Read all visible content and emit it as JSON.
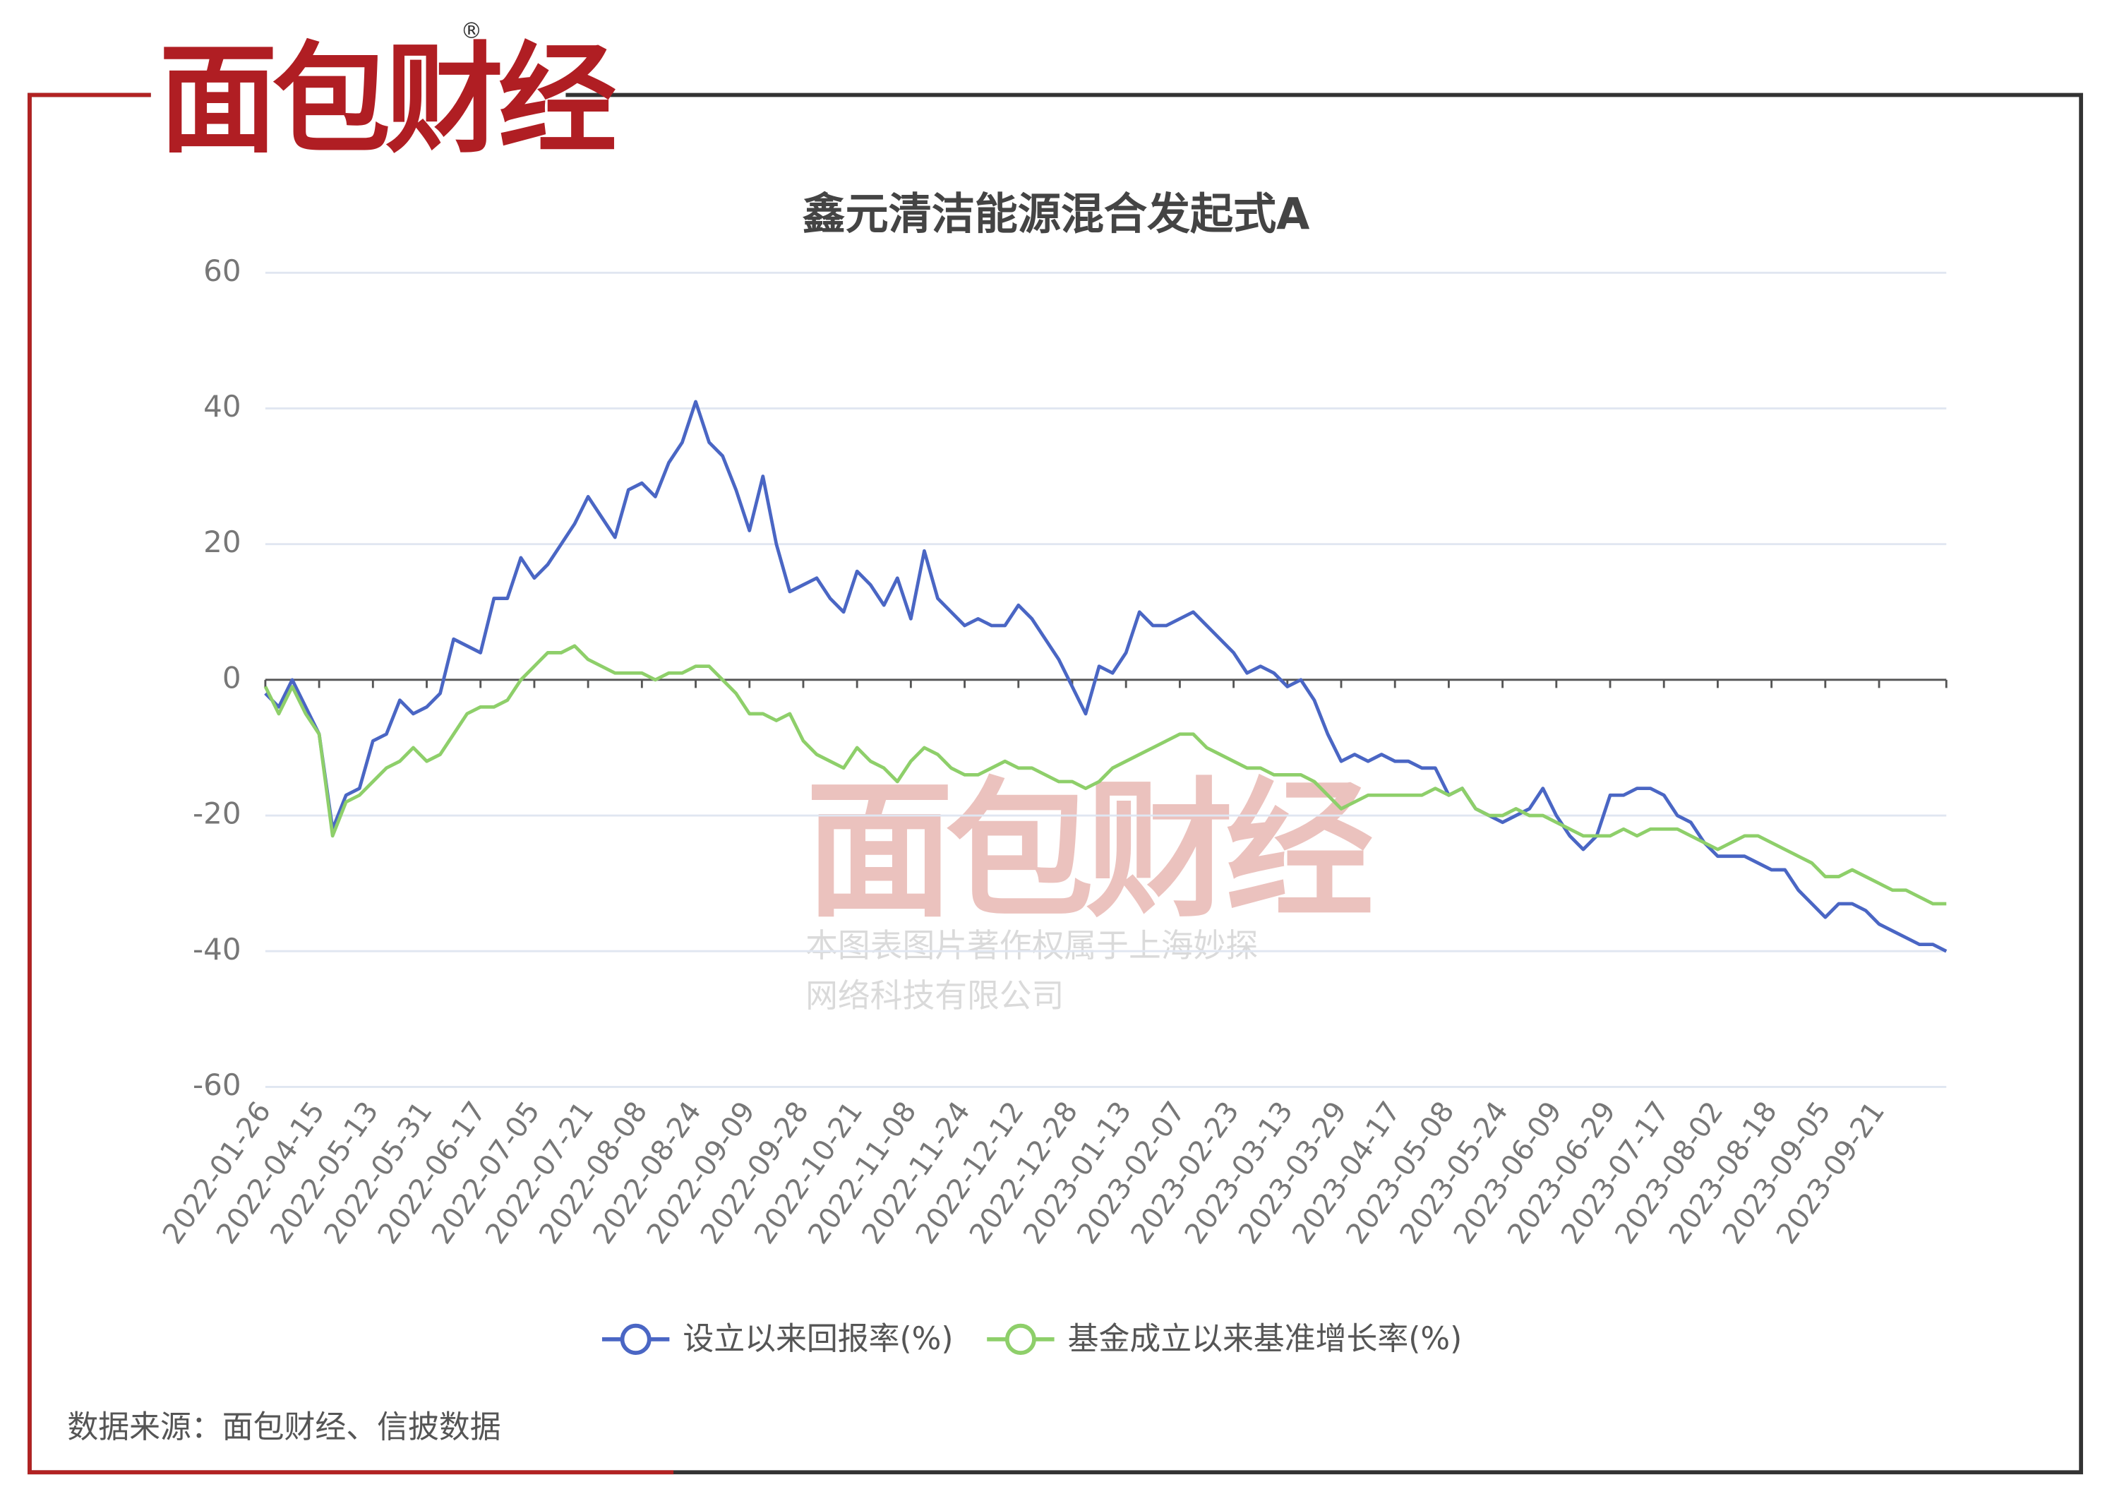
{
  "logo": "面包财经",
  "source": "数据来源：面包财经、信披数据",
  "watermark": [
    "本图表图片著作权属于上海妙探",
    "网络科技有限公司"
  ],
  "chart_data": {
    "type": "line",
    "title": "鑫元清洁能源混合发起式A",
    "categories": [
      "2022-01-26",
      null,
      null,
      null,
      "2022-04-15",
      null,
      null,
      null,
      "2022-05-13",
      null,
      null,
      null,
      "2022-05-31",
      null,
      null,
      null,
      "2022-06-17",
      null,
      null,
      null,
      "2022-07-05",
      null,
      null,
      null,
      "2022-07-21",
      null,
      null,
      null,
      "2022-08-08",
      null,
      null,
      null,
      "2022-08-24",
      null,
      null,
      null,
      "2022-09-09",
      null,
      null,
      null,
      "2022-09-28",
      null,
      null,
      null,
      "2022-10-21",
      null,
      null,
      null,
      "2022-11-08",
      null,
      null,
      null,
      "2022-11-24",
      null,
      null,
      null,
      "2022-12-12",
      null,
      null,
      null,
      "2022-12-28",
      null,
      null,
      null,
      "2023-01-13",
      null,
      null,
      null,
      "2023-02-07",
      null,
      null,
      null,
      "2023-02-23",
      null,
      null,
      null,
      "2023-03-13",
      null,
      null,
      null,
      "2023-03-29",
      null,
      null,
      null,
      "2023-04-17",
      null,
      null,
      null,
      "2023-05-08",
      null,
      null,
      null,
      "2023-05-24",
      null,
      null,
      null,
      "2023-06-09",
      null,
      null,
      null,
      "2023-06-29",
      null,
      null,
      null,
      "2023-07-17",
      null,
      null,
      null,
      "2023-08-02",
      null,
      null,
      null,
      "2023-08-18",
      null,
      null,
      null,
      "2023-09-05",
      null,
      null,
      null,
      "2023-09-21",
      null,
      null,
      null,
      null,
      null
    ],
    "series": [
      {
        "name": "设立以来回报率(%)",
        "color": "#4a66c4",
        "values": [
          -2,
          -4,
          0,
          -4,
          -8,
          -22,
          -17,
          -16,
          -9,
          -8,
          -3,
          -5,
          -4,
          -2,
          6,
          5,
          4,
          12,
          12,
          18,
          15,
          17,
          20,
          23,
          27,
          24,
          21,
          28,
          29,
          27,
          32,
          35,
          41,
          35,
          33,
          28,
          22,
          30,
          20,
          13,
          14,
          15,
          12,
          10,
          16,
          14,
          11,
          15,
          9,
          19,
          12,
          10,
          8,
          9,
          8,
          8,
          11,
          9,
          6,
          3,
          -1,
          -5,
          2,
          1,
          4,
          10,
          8,
          8,
          9,
          10,
          8,
          6,
          4,
          1,
          2,
          1,
          -1,
          0,
          -3,
          -8,
          -12,
          -11,
          -12,
          -11,
          -12,
          -12,
          -13,
          -13,
          -17,
          -16,
          -19,
          -20,
          -21,
          -20,
          -19,
          -16,
          -20,
          -23,
          -25,
          -23,
          -17,
          -17,
          -16,
          -16,
          -17,
          -20,
          -21,
          -24,
          -26,
          -26,
          -26,
          -27,
          -28,
          -28,
          -31,
          -33,
          -35,
          -33,
          -33,
          -34,
          -36,
          -37,
          -38,
          -39,
          -39,
          -40
        ]
      },
      {
        "name": "基金成立以来基准增长率(%)",
        "color": "#8ecf6a",
        "values": [
          -1,
          -5,
          -1,
          -5,
          -8,
          -23,
          -18,
          -17,
          -15,
          -13,
          -12,
          -10,
          -12,
          -11,
          -8,
          -5,
          -4,
          -4,
          -3,
          0,
          2,
          4,
          4,
          5,
          3,
          2,
          1,
          1,
          1,
          0,
          1,
          1,
          2,
          2,
          0,
          -2,
          -5,
          -5,
          -6,
          -5,
          -9,
          -11,
          -12,
          -13,
          -10,
          -12,
          -13,
          -15,
          -12,
          -10,
          -11,
          -13,
          -14,
          -14,
          -13,
          -12,
          -13,
          -13,
          -14,
          -15,
          -15,
          -16,
          -15,
          -13,
          -12,
          -11,
          -10,
          -9,
          -8,
          -8,
          -10,
          -11,
          -12,
          -13,
          -13,
          -14,
          -14,
          -14,
          -15,
          -17,
          -19,
          -18,
          -17,
          -17,
          -17,
          -17,
          -17,
          -16,
          -17,
          -16,
          -19,
          -20,
          -20,
          -19,
          -20,
          -20,
          -21,
          -22,
          -23,
          -23,
          -23,
          -22,
          -23,
          -22,
          -22,
          -22,
          -23,
          -24,
          -25,
          -24,
          -23,
          -23,
          -24,
          -25,
          -26,
          -27,
          -29,
          -29,
          -28,
          -29,
          -30,
          -31,
          -31,
          -32,
          -33,
          -33
        ]
      }
    ],
    "ylim": [
      -60,
      60
    ],
    "yticks": [
      -60,
      -40,
      -20,
      0,
      20,
      40,
      60
    ],
    "grid": true
  }
}
